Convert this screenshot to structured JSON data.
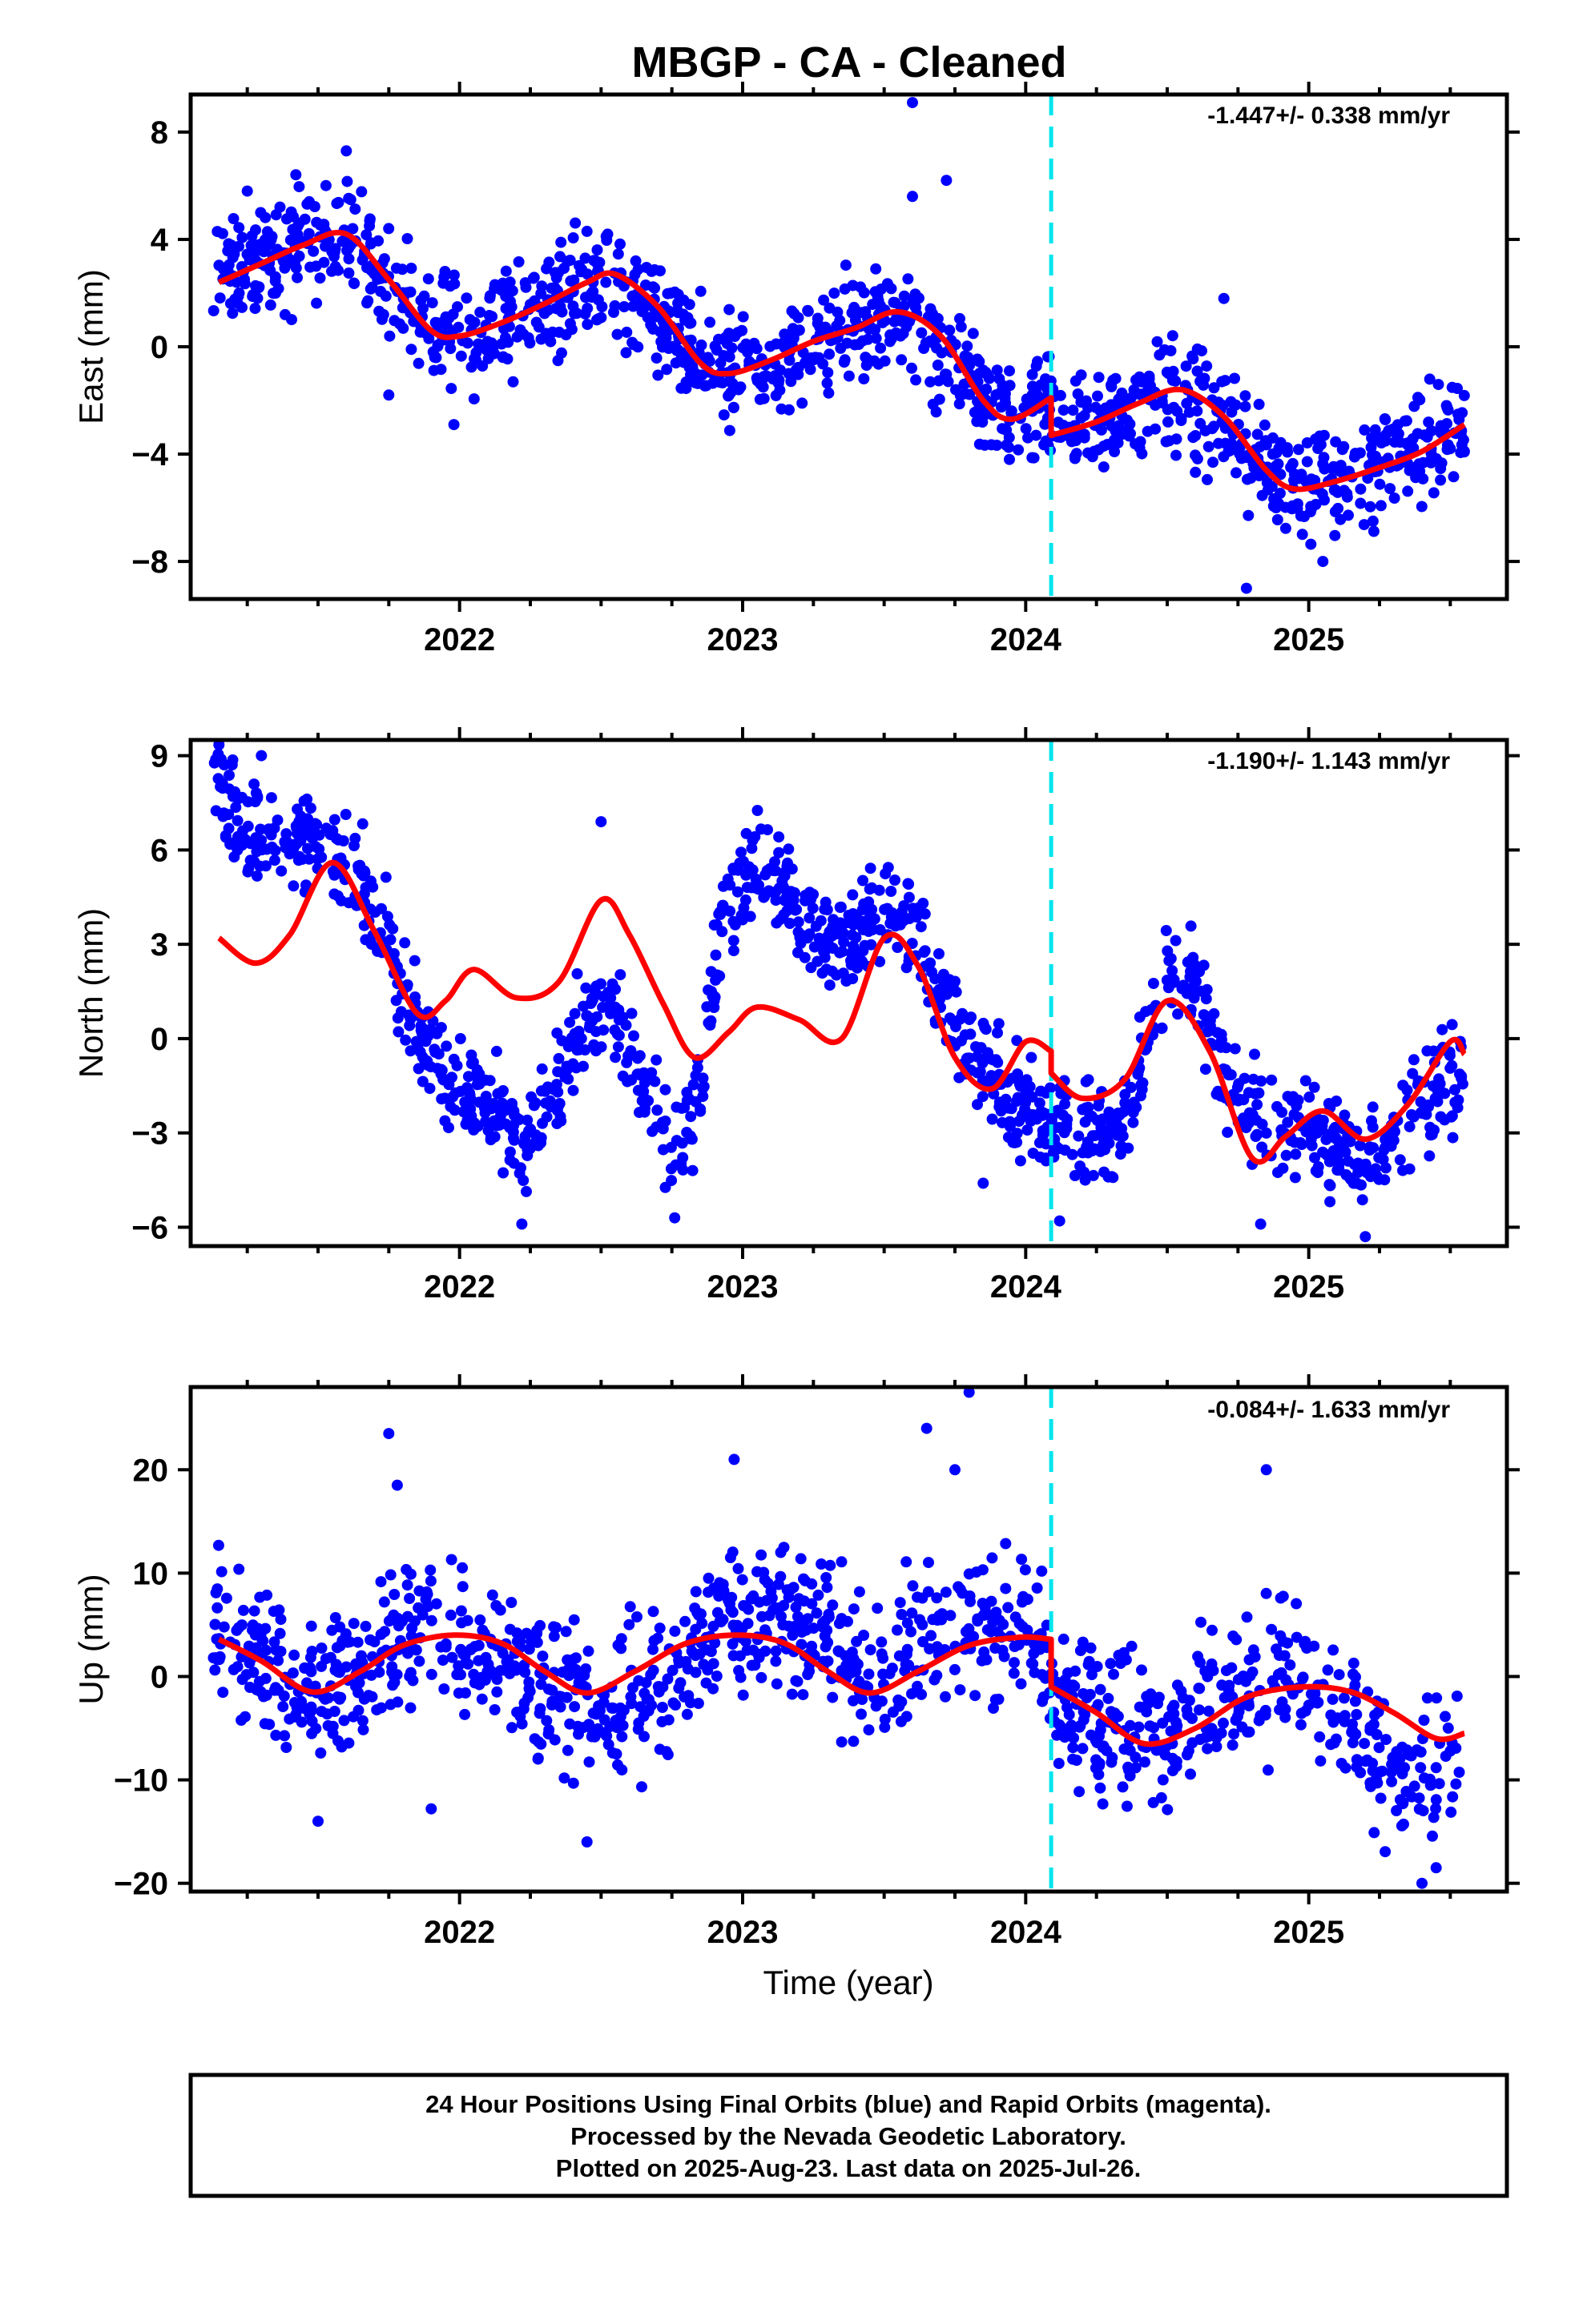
{
  "title": "MBGP  - CA - Cleaned",
  "colors": {
    "data": "#0000ff",
    "model": "#ff0000",
    "event": "#00e5ee",
    "frame": "#000000"
  },
  "x_axis": {
    "label": "Time (year)",
    "ticks": [
      2022,
      2023,
      2024,
      2025
    ],
    "range": [
      2021.05,
      2025.7
    ]
  },
  "event_line_year": 2024.09,
  "chart_data": [
    {
      "type": "scatter",
      "component": "East",
      "ylabel": "East (mm)",
      "rate_label": "-1.447+/- 0.338 mm/yr",
      "ylim": [
        -9.4,
        9.4
      ],
      "yticks": [
        -8,
        -4,
        0,
        4,
        8
      ],
      "model": {
        "x": [
          2021.15,
          2021.3,
          2021.45,
          2021.6,
          2021.75,
          2021.9,
          2022.0,
          2022.15,
          2022.3,
          2022.45,
          2022.55,
          2022.7,
          2022.85,
          2022.95,
          2023.1,
          2023.25,
          2023.4,
          2023.55,
          2023.7,
          2023.85,
          2023.95,
          2024.09,
          2024.09,
          2024.25,
          2024.4,
          2024.55,
          2024.7,
          2024.85,
          2024.95,
          2025.1,
          2025.25,
          2025.4,
          2025.55
        ],
        "y": [
          2.4,
          3.1,
          3.8,
          4.2,
          2.5,
          0.6,
          0.4,
          0.9,
          1.6,
          2.4,
          2.7,
          1.5,
          -0.6,
          -1.0,
          -0.5,
          0.2,
          0.7,
          1.3,
          0.4,
          -2.0,
          -2.7,
          -1.9,
          -3.3,
          -2.8,
          -2.1,
          -1.6,
          -2.6,
          -4.6,
          -5.3,
          -5.0,
          -4.5,
          -3.9,
          -2.9
        ]
      },
      "samples": {
        "anchors": [
          [
            2021.15,
            2.4
          ],
          [
            2021.3,
            3.1
          ],
          [
            2021.45,
            3.8
          ],
          [
            2021.6,
            4.2
          ],
          [
            2021.75,
            2.5
          ],
          [
            2021.9,
            0.6
          ],
          [
            2022.05,
            0.6
          ],
          [
            2022.3,
            1.6
          ],
          [
            2022.55,
            2.7
          ],
          [
            2022.8,
            0.0
          ],
          [
            2022.95,
            -1.0
          ],
          [
            2023.25,
            0.2
          ],
          [
            2023.55,
            1.3
          ],
          [
            2023.75,
            -0.8
          ],
          [
            2023.95,
            -2.7
          ],
          [
            2024.08,
            -2.0
          ],
          [
            2024.1,
            -3.3
          ],
          [
            2024.4,
            -2.1
          ],
          [
            2024.55,
            -1.6
          ],
          [
            2024.8,
            -4.0
          ],
          [
            2024.95,
            -5.3
          ],
          [
            2025.3,
            -4.3
          ],
          [
            2025.55,
            -2.9
          ]
        ],
        "noise": 1.2,
        "n": 1300,
        "seed": 11
      },
      "outliers": [
        [
          2021.25,
          5.8
        ],
        [
          2021.6,
          7.3
        ],
        [
          2022.45,
          4.3
        ],
        [
          2023.6,
          9.1
        ],
        [
          2023.72,
          6.2
        ],
        [
          2023.6,
          5.6
        ],
        [
          2024.78,
          -9.0
        ],
        [
          2024.7,
          1.8
        ],
        [
          2025.05,
          -8.0
        ],
        [
          2021.75,
          -1.8
        ],
        [
          2021.98,
          -2.9
        ]
      ]
    },
    {
      "type": "scatter",
      "component": "North",
      "ylabel": "North (mm)",
      "rate_label": "-1.190+/- 1.143 mm/yr",
      "ylim": [
        -6.6,
        9.5
      ],
      "yticks": [
        -6,
        -3,
        0,
        3,
        6,
        9
      ],
      "model": {
        "x": [
          2021.15,
          2021.28,
          2021.4,
          2021.55,
          2021.7,
          2021.85,
          2021.95,
          2022.05,
          2022.2,
          2022.35,
          2022.5,
          2022.6,
          2022.72,
          2022.83,
          2022.95,
          2023.05,
          2023.2,
          2023.35,
          2023.5,
          2023.62,
          2023.75,
          2023.88,
          2024.0,
          2024.09,
          2024.09,
          2024.2,
          2024.35,
          2024.5,
          2024.65,
          2024.8,
          2024.92,
          2025.05,
          2025.2,
          2025.35,
          2025.5,
          2025.55
        ],
        "y": [
          3.2,
          2.4,
          3.3,
          5.6,
          3.4,
          0.8,
          1.2,
          2.2,
          1.3,
          1.8,
          4.4,
          3.3,
          1.1,
          -0.6,
          0.2,
          1.0,
          0.6,
          0.0,
          3.2,
          2.3,
          -0.6,
          -1.6,
          -0.1,
          -0.4,
          -1.1,
          -1.9,
          -1.3,
          1.2,
          -0.4,
          -3.8,
          -3.1,
          -2.3,
          -3.2,
          -2.1,
          -0.1,
          -0.5
        ]
      },
      "samples": {
        "anchors": [
          [
            2021.15,
            8.2
          ],
          [
            2021.25,
            6.5
          ],
          [
            2021.45,
            6.5
          ],
          [
            2021.65,
            5.2
          ],
          [
            2021.8,
            1.5
          ],
          [
            2021.95,
            -1.5
          ],
          [
            2022.1,
            -2.0
          ],
          [
            2022.25,
            -3.5
          ],
          [
            2022.35,
            -1.5
          ],
          [
            2022.5,
            1.8
          ],
          [
            2022.62,
            -0.8
          ],
          [
            2022.75,
            -3.5
          ],
          [
            2022.83,
            -2.5
          ],
          [
            2022.92,
            3.5
          ],
          [
            2023.05,
            5.5
          ],
          [
            2023.2,
            4.5
          ],
          [
            2023.3,
            3.0
          ],
          [
            2023.5,
            4.0
          ],
          [
            2023.6,
            3.5
          ],
          [
            2023.75,
            0.5
          ],
          [
            2023.9,
            -1.5
          ],
          [
            2024.05,
            -2.5
          ],
          [
            2024.2,
            -3.5
          ],
          [
            2024.35,
            -2.5
          ],
          [
            2024.5,
            2.2
          ],
          [
            2024.6,
            1.5
          ],
          [
            2024.75,
            -2.0
          ],
          [
            2024.9,
            -2.8
          ],
          [
            2025.1,
            -3.5
          ],
          [
            2025.25,
            -4.0
          ],
          [
            2025.4,
            -2.0
          ],
          [
            2025.55,
            -1.0
          ]
        ],
        "noise": 1.0,
        "n": 1300,
        "seed": 23
      },
      "outliers": [
        [
          2021.15,
          9.4
        ],
        [
          2022.22,
          -5.9
        ],
        [
          2022.76,
          -5.7
        ],
        [
          2022.5,
          6.9
        ],
        [
          2023.85,
          -4.6
        ],
        [
          2024.12,
          -5.8
        ],
        [
          2024.8,
          -4.0
        ],
        [
          2024.83,
          -5.9
        ],
        [
          2025.2,
          -6.3
        ],
        [
          2021.3,
          9.0
        ]
      ]
    },
    {
      "type": "scatter",
      "component": "Up",
      "ylabel": "Up (mm)",
      "rate_label": "-0.084+/- 1.633 mm/yr",
      "ylim": [
        -20.8,
        28.0
      ],
      "yticks": [
        -20,
        -10,
        0,
        10,
        20
      ],
      "model": {
        "x": [
          2021.15,
          2021.3,
          2021.48,
          2021.65,
          2021.8,
          2021.98,
          2022.15,
          2022.3,
          2022.45,
          2022.62,
          2022.8,
          2022.98,
          2023.15,
          2023.3,
          2023.45,
          2023.62,
          2023.8,
          2023.98,
          2024.09,
          2024.09,
          2024.25,
          2024.42,
          2024.6,
          2024.78,
          2024.98,
          2025.15,
          2025.3,
          2025.45,
          2025.55
        ],
        "y": [
          3.6,
          1.5,
          -1.5,
          0.5,
          3.0,
          4.0,
          3.2,
          0.5,
          -1.6,
          0.5,
          3.2,
          4.0,
          3.2,
          0.5,
          -1.6,
          0.5,
          3.0,
          3.8,
          3.6,
          -1.0,
          -3.5,
          -6.5,
          -5.0,
          -2.0,
          -1.0,
          -1.5,
          -3.5,
          -6.0,
          -5.5
        ]
      },
      "samples": {
        "anchors": [
          [
            2021.15,
            5.0
          ],
          [
            2021.35,
            1.0
          ],
          [
            2021.5,
            -2.0
          ],
          [
            2021.7,
            1.5
          ],
          [
            2021.9,
            4.5
          ],
          [
            2022.1,
            2.5
          ],
          [
            2022.3,
            -0.5
          ],
          [
            2022.5,
            -4.0
          ],
          [
            2022.7,
            -1.0
          ],
          [
            2022.9,
            3.5
          ],
          [
            2023.1,
            6.0
          ],
          [
            2023.3,
            3.0
          ],
          [
            2023.5,
            0.0
          ],
          [
            2023.7,
            4.0
          ],
          [
            2023.95,
            5.0
          ],
          [
            2024.08,
            3.0
          ],
          [
            2024.1,
            -2.0
          ],
          [
            2024.3,
            -5.0
          ],
          [
            2024.5,
            -6.0
          ],
          [
            2024.7,
            -2.0
          ],
          [
            2024.9,
            1.0
          ],
          [
            2025.05,
            -1.0
          ],
          [
            2025.2,
            -7.0
          ],
          [
            2025.4,
            -10.0
          ],
          [
            2025.55,
            -7.0
          ]
        ],
        "noise": 4.3,
        "n": 1200,
        "seed": 37
      },
      "outliers": [
        [
          2021.75,
          23.5
        ],
        [
          2021.78,
          18.5
        ],
        [
          2022.97,
          21.0
        ],
        [
          2023.65,
          24.0
        ],
        [
          2023.8,
          27.5
        ],
        [
          2023.75,
          20.0
        ],
        [
          2024.85,
          20.0
        ],
        [
          2022.45,
          -16.0
        ],
        [
          2021.5,
          -14.0
        ],
        [
          2025.45,
          -18.5
        ],
        [
          2025.4,
          -20.0
        ],
        [
          2021.9,
          -12.8
        ]
      ]
    }
  ],
  "footer": {
    "line1": "24 Hour Positions Using Final Orbits (blue) and Rapid Orbits (magenta).",
    "line2": "Processed by the Nevada Geodetic Laboratory.",
    "line3": "Plotted on 2025-Aug-23. Last data on 2025-Jul-26."
  }
}
